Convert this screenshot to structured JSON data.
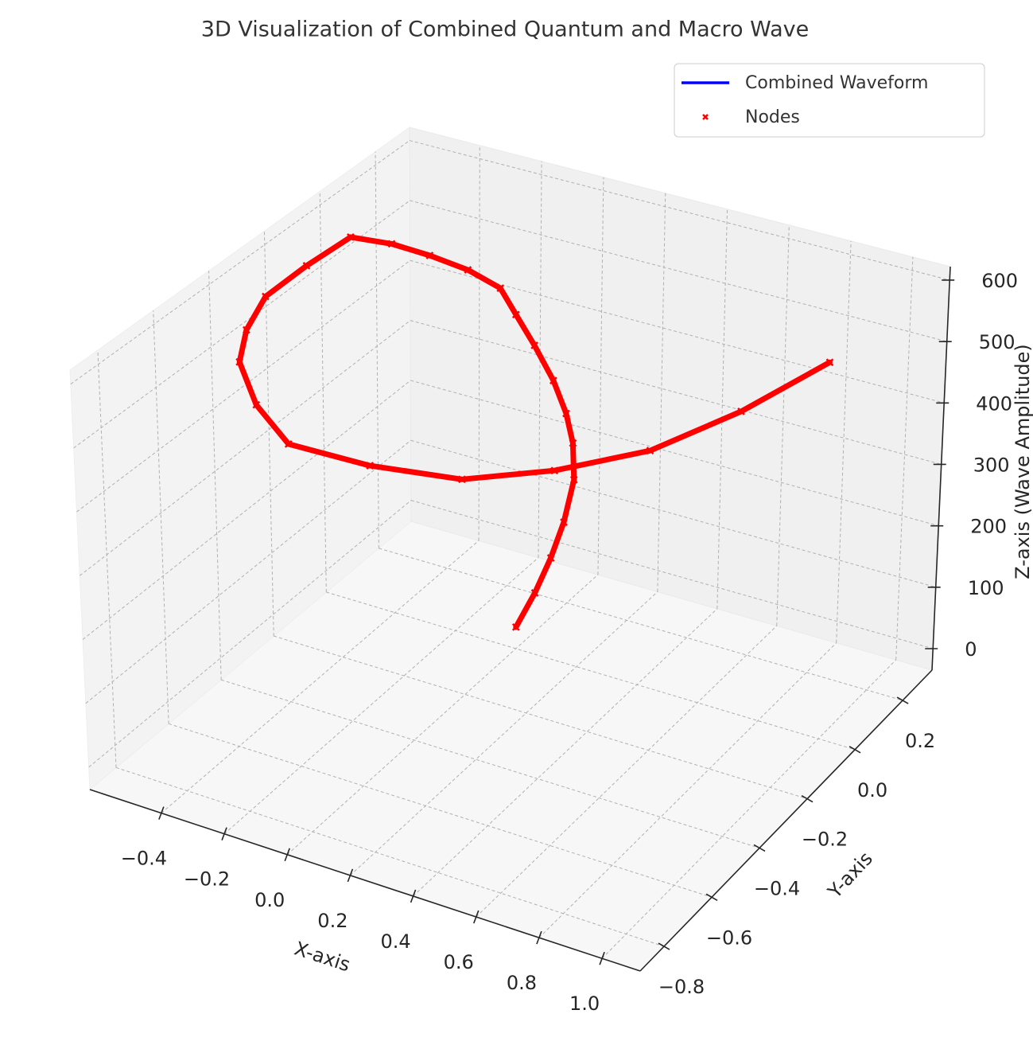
{
  "chart_data": {
    "type": "line3d",
    "title": "3D Visualization of Combined Quantum and Macro Wave",
    "x_label": "X-axis",
    "y_label": "Y-axis",
    "z_label": "Z-axis (Wave Amplitude)",
    "x": [
      0,
      0.02,
      0.03,
      0.03,
      0.02,
      -0.01,
      -0.05,
      -0.11,
      -0.19,
      -0.26,
      -0.32,
      -0.4,
      -0.48,
      -0.55,
      -0.62,
      -0.62,
      -0.61,
      -0.54,
      -0.45,
      -0.27,
      -0.07,
      0.19,
      0.45,
      0.64,
      0.81,
      0.92,
      1.0
    ],
    "y": [
      0,
      0.05,
      0.1,
      0.15,
      0.2,
      0.23,
      0.25,
      0.27,
      0.29,
      0.3,
      0.31,
      0.28,
      0.23,
      0.17,
      0.1,
      -0.06,
      -0.22,
      -0.37,
      -0.5,
      -0.65,
      -0.77,
      -0.78,
      -0.75,
      -0.63,
      -0.47,
      -0.25,
      0.0
    ],
    "z": [
      0,
      40,
      80,
      120,
      170,
      215,
      251,
      290,
      330,
      368,
      400,
      430,
      460,
      490,
      515,
      521,
      525,
      530,
      534,
      541,
      548,
      556,
      563,
      564,
      565,
      566,
      567
    ],
    "series": [
      {
        "name": "Combined Waveform",
        "color": "#0000ff",
        "kind": "line"
      },
      {
        "name": "Nodes",
        "color": "#ff0000",
        "kind": "scatter",
        "marker": "x"
      }
    ],
    "xlim": [
      -0.627,
      1.121
    ],
    "ylim": [
      -0.9,
      0.323
    ],
    "zlim": [
      -35,
      622
    ],
    "xticks": [
      {
        "value": -0.4,
        "label": "−0.4"
      },
      {
        "value": -0.2,
        "label": "−0.2"
      },
      {
        "value": 0,
        "label": "0.0"
      },
      0.2,
      0.4,
      0.6,
      0.8,
      {
        "value": 1,
        "label": "1.0"
      }
    ],
    "yticks": [
      {
        "value": -0.8,
        "label": "−0.8"
      },
      {
        "value": -0.6,
        "label": "−0.6"
      },
      {
        "value": -0.4,
        "label": "−0.4"
      },
      {
        "value": -0.2,
        "label": "−0.2"
      },
      {
        "value": 0,
        "label": "0.0"
      },
      0.2
    ],
    "zticks": [
      0,
      100,
      200,
      300,
      400,
      500,
      600
    ],
    "grid": true,
    "legend": "upper right"
  }
}
